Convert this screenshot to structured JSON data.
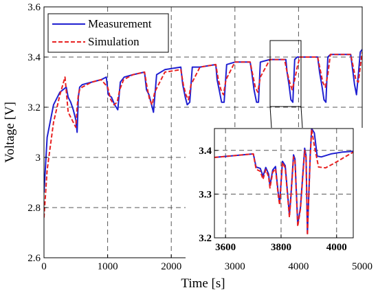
{
  "chart_data": [
    {
      "type": "line",
      "title": "",
      "xlabel": "Time [s]",
      "ylabel": "Voltage [V]",
      "xlim": [
        0,
        5000
      ],
      "ylim": [
        2.6,
        3.6
      ],
      "x_ticks": [
        "0",
        "1000",
        "2000",
        "3000",
        "4000",
        "5000"
      ],
      "y_ticks": [
        "2.6",
        "2.8",
        "3",
        "3.2",
        "3.4",
        "3.6"
      ],
      "grid": "dashed",
      "legend_position": "top-left",
      "series": [
        {
          "name": "Measurement",
          "color": "#1f1fd1",
          "style": "solid",
          "x": [
            0,
            50,
            150,
            250,
            350,
            380,
            420,
            460,
            500,
            520,
            540,
            560,
            600,
            750,
            900,
            980,
            1010,
            1060,
            1110,
            1160,
            1200,
            1260,
            1400,
            1580,
            1610,
            1650,
            1690,
            1720,
            1770,
            1900,
            2150,
            2180,
            2220,
            2250,
            2290,
            2330,
            2450,
            2700,
            2720,
            2760,
            2790,
            2830,
            2870,
            3000,
            3240,
            3270,
            3300,
            3340,
            3370,
            3400,
            3550,
            3800,
            3820,
            3850,
            3880,
            3910,
            3940,
            3980,
            4300,
            4330,
            4370,
            4400,
            4430,
            4460,
            4500,
            4820,
            4850,
            4880,
            4910,
            4940,
            4970,
            5000
          ],
          "y": [
            2.86,
            3.08,
            3.21,
            3.26,
            3.28,
            3.24,
            3.22,
            3.19,
            3.15,
            3.1,
            3.24,
            3.28,
            3.29,
            3.3,
            3.31,
            3.32,
            3.25,
            3.24,
            3.21,
            3.19,
            3.3,
            3.32,
            3.33,
            3.34,
            3.27,
            3.25,
            3.21,
            3.18,
            3.33,
            3.35,
            3.36,
            3.29,
            3.24,
            3.21,
            3.22,
            3.36,
            3.36,
            3.37,
            3.31,
            3.26,
            3.22,
            3.22,
            3.37,
            3.38,
            3.38,
            3.33,
            3.27,
            3.22,
            3.22,
            3.38,
            3.39,
            3.39,
            3.34,
            3.29,
            3.23,
            3.22,
            3.39,
            3.4,
            3.4,
            3.34,
            3.28,
            3.23,
            3.22,
            3.4,
            3.41,
            3.41,
            3.35,
            3.29,
            3.25,
            3.33,
            3.42,
            3.43
          ]
        },
        {
          "name": "Simulation",
          "color": "#e82020",
          "style": "dashed",
          "x": [
            0,
            50,
            150,
            250,
            330,
            380,
            420,
            460,
            500,
            520,
            540,
            560,
            600,
            750,
            900,
            1000,
            1050,
            1100,
            1150,
            1190,
            1250,
            1400,
            1580,
            1620,
            1660,
            1700,
            1740,
            1900,
            2150,
            2190,
            2230,
            2270,
            2310,
            2450,
            2700,
            2740,
            2780,
            2820,
            2860,
            3000,
            3240,
            3280,
            3320,
            3360,
            3400,
            3550,
            3780,
            3820,
            3860,
            3900,
            3940,
            3980,
            4020,
            4300,
            4340,
            4380,
            4420,
            4460,
            4500,
            4820,
            4860,
            4900,
            4940,
            4980,
            5000
          ],
          "y": [
            2.76,
            2.95,
            3.14,
            3.25,
            3.32,
            3.18,
            3.16,
            3.14,
            3.12,
            3.2,
            3.25,
            3.27,
            3.28,
            3.3,
            3.31,
            3.28,
            3.23,
            3.21,
            3.22,
            3.27,
            3.31,
            3.33,
            3.34,
            3.28,
            3.23,
            3.21,
            3.26,
            3.34,
            3.35,
            3.29,
            3.25,
            3.23,
            3.29,
            3.36,
            3.37,
            3.31,
            3.27,
            3.25,
            3.31,
            3.38,
            3.38,
            3.33,
            3.28,
            3.26,
            3.32,
            3.39,
            3.39,
            3.34,
            3.3,
            3.27,
            3.31,
            3.36,
            3.4,
            3.4,
            3.35,
            3.3,
            3.28,
            3.33,
            3.41,
            3.41,
            3.36,
            3.31,
            3.3,
            3.38,
            3.42
          ]
        }
      ]
    },
    {
      "type": "line",
      "title": "",
      "xlabel": "",
      "ylabel": "",
      "xlim": [
        3560,
        4060
      ],
      "ylim": [
        3.2,
        3.45
      ],
      "x_ticks": [
        "3600",
        "3800",
        "4000"
      ],
      "y_ticks": [
        "3.2",
        "3.3",
        "3.4"
      ],
      "grid": "dashed",
      "series": [
        {
          "name": "Measurement",
          "color": "#1f1fd1",
          "style": "solid",
          "x": [
            3560,
            3700,
            3710,
            3725,
            3735,
            3745,
            3755,
            3760,
            3770,
            3780,
            3790,
            3795,
            3805,
            3815,
            3830,
            3835,
            3845,
            3850,
            3860,
            3870,
            3885,
            3890,
            3895,
            3905,
            3910,
            3920,
            3930,
            3945,
            3980,
            4020,
            4060
          ],
          "y": [
            3.384,
            3.392,
            3.362,
            3.359,
            3.341,
            3.361,
            3.346,
            3.319,
            3.355,
            3.363,
            3.301,
            3.28,
            3.375,
            3.365,
            3.252,
            3.292,
            3.39,
            3.38,
            3.231,
            3.27,
            3.405,
            3.388,
            3.21,
            3.39,
            3.45,
            3.44,
            3.387,
            3.385,
            3.392,
            3.396,
            3.398
          ]
        },
        {
          "name": "Simulation",
          "color": "#e82020",
          "style": "dashed",
          "x": [
            3560,
            3700,
            3710,
            3725,
            3735,
            3745,
            3755,
            3760,
            3770,
            3780,
            3790,
            3795,
            3805,
            3815,
            3830,
            3835,
            3845,
            3850,
            3860,
            3870,
            3885,
            3890,
            3895,
            3905,
            3910,
            3920,
            3935,
            3960,
            3990,
            4030,
            4060
          ],
          "y": [
            3.384,
            3.392,
            3.357,
            3.352,
            3.334,
            3.356,
            3.34,
            3.314,
            3.35,
            3.358,
            3.296,
            3.275,
            3.372,
            3.36,
            3.247,
            3.287,
            3.385,
            3.375,
            3.226,
            3.266,
            3.4,
            3.383,
            3.206,
            3.386,
            3.448,
            3.41,
            3.362,
            3.36,
            3.37,
            3.385,
            3.396
          ]
        }
      ]
    }
  ]
}
